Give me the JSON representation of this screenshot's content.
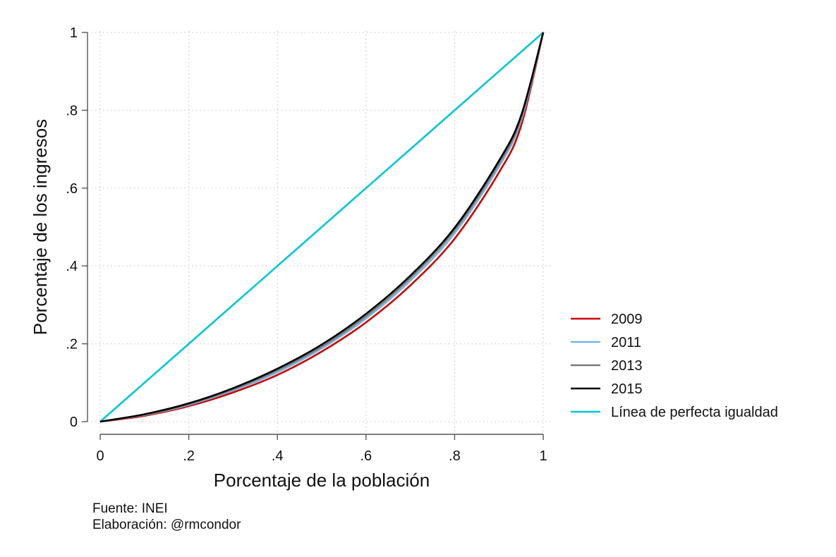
{
  "chart_data": {
    "type": "line",
    "xlabel": "Porcentaje de la población",
    "ylabel": "Porcentaje de los ingresos",
    "xlim": [
      0,
      1
    ],
    "ylim": [
      0,
      1
    ],
    "grid": true,
    "legend_position": "right",
    "x_ticks": [
      "0",
      ".2",
      ".4",
      ".6",
      ".8",
      "1"
    ],
    "y_ticks": [
      "0",
      ".2",
      ".4",
      ".6",
      ".8",
      "1"
    ],
    "x_tick_values": [
      0,
      0.2,
      0.4,
      0.6,
      0.8,
      1
    ],
    "y_tick_values": [
      0,
      0.2,
      0.4,
      0.6,
      0.8,
      1
    ],
    "x": [
      0,
      0.1,
      0.2,
      0.3,
      0.4,
      0.5,
      0.6,
      0.7,
      0.8,
      0.9,
      0.95,
      1
    ],
    "series": [
      {
        "name": "2009",
        "color": "#cc0000",
        "values": [
          0,
          0.015,
          0.04,
          0.075,
          0.12,
          0.18,
          0.255,
          0.35,
          0.47,
          0.64,
          0.76,
          1
        ]
      },
      {
        "name": "2011",
        "color": "#74b6e0",
        "values": [
          0,
          0.017,
          0.043,
          0.08,
          0.127,
          0.188,
          0.265,
          0.362,
          0.484,
          0.655,
          0.773,
          1
        ]
      },
      {
        "name": "2013",
        "color": "#7a7a7a",
        "values": [
          0,
          0.018,
          0.045,
          0.083,
          0.132,
          0.193,
          0.271,
          0.369,
          0.492,
          0.663,
          0.78,
          1
        ]
      },
      {
        "name": "2015",
        "color": "#000000",
        "values": [
          0,
          0.019,
          0.047,
          0.086,
          0.136,
          0.198,
          0.277,
          0.375,
          0.498,
          0.67,
          0.786,
          1
        ]
      },
      {
        "name": "Línea de perfecta igualdad",
        "color": "#00c8d0",
        "values": [
          0,
          0.1,
          0.2,
          0.3,
          0.4,
          0.5,
          0.6,
          0.7,
          0.8,
          0.9,
          0.95,
          1
        ]
      }
    ]
  },
  "notes": {
    "source": "Fuente: INEI",
    "author": "Elaboración: @rmcondor"
  }
}
